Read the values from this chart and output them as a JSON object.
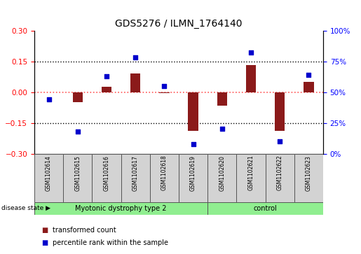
{
  "title": "GDS5276 / ILMN_1764140",
  "samples": [
    "GSM1102614",
    "GSM1102615",
    "GSM1102616",
    "GSM1102617",
    "GSM1102618",
    "GSM1102619",
    "GSM1102620",
    "GSM1102621",
    "GSM1102622",
    "GSM1102623"
  ],
  "transformed_count": [
    0.0,
    -0.05,
    0.025,
    0.09,
    -0.005,
    -0.19,
    -0.065,
    0.13,
    -0.19,
    0.05
  ],
  "percentile_rank": [
    44,
    18,
    63,
    78,
    55,
    8,
    20,
    82,
    10,
    64
  ],
  "group1_count": 6,
  "group2_count": 4,
  "group1_label": "Myotonic dystrophy type 2",
  "group2_label": "control",
  "group_color": "#90EE90",
  "sample_box_color": "#D3D3D3",
  "left_ylim": [
    -0.3,
    0.3
  ],
  "right_ylim": [
    0,
    100
  ],
  "left_yticks": [
    -0.3,
    -0.15,
    0.0,
    0.15,
    0.3
  ],
  "right_yticks": [
    0,
    25,
    50,
    75,
    100
  ],
  "right_yticklabels": [
    "0%",
    "25%",
    "50%",
    "75%",
    "100%"
  ],
  "bar_color": "#8B1A1A",
  "dot_color": "#0000CC",
  "hline_zero_color": "#FF5555",
  "hline_ref_color": "black",
  "hline_positions": [
    -0.15,
    0.15
  ],
  "title_fontsize": 10,
  "label_transformed": "transformed count",
  "label_percentile": "percentile rank within the sample",
  "disease_state_label": "disease state"
}
